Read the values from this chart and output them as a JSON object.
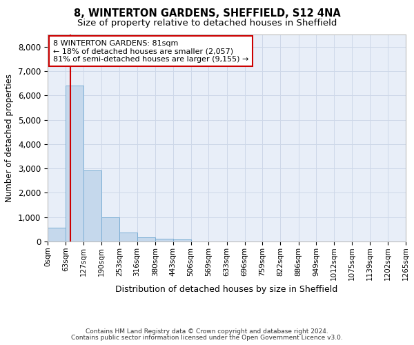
{
  "title1": "8, WINTERTON GARDENS, SHEFFIELD, S12 4NA",
  "title2": "Size of property relative to detached houses in Sheffield",
  "xlabel": "Distribution of detached houses by size in Sheffield",
  "ylabel": "Number of detached properties",
  "footer1": "Contains HM Land Registry data © Crown copyright and database right 2024.",
  "footer2": "Contains public sector information licensed under the Open Government Licence v3.0.",
  "annotation_line1": "8 WINTERTON GARDENS: 81sqm",
  "annotation_line2": "← 18% of detached houses are smaller (2,057)",
  "annotation_line3": "81% of semi-detached houses are larger (9,155) →",
  "property_size": 81,
  "bin_edges": [
    0,
    63,
    127,
    190,
    253,
    316,
    380,
    443,
    506,
    569,
    633,
    696,
    759,
    822,
    886,
    949,
    1012,
    1075,
    1139,
    1202,
    1265
  ],
  "bar_heights": [
    580,
    6400,
    2920,
    980,
    380,
    170,
    125,
    80,
    0,
    0,
    0,
    0,
    0,
    0,
    0,
    0,
    0,
    0,
    0,
    0
  ],
  "bar_color": "#c5d8ec",
  "bar_edge_color": "#7aadd4",
  "vline_color": "#cc0000",
  "annotation_box_edge_color": "#cc0000",
  "grid_color": "#cdd7e8",
  "background_color": "#e8eef8",
  "ylim": [
    0,
    8500
  ],
  "yticks": [
    0,
    1000,
    2000,
    3000,
    4000,
    5000,
    6000,
    7000,
    8000
  ]
}
